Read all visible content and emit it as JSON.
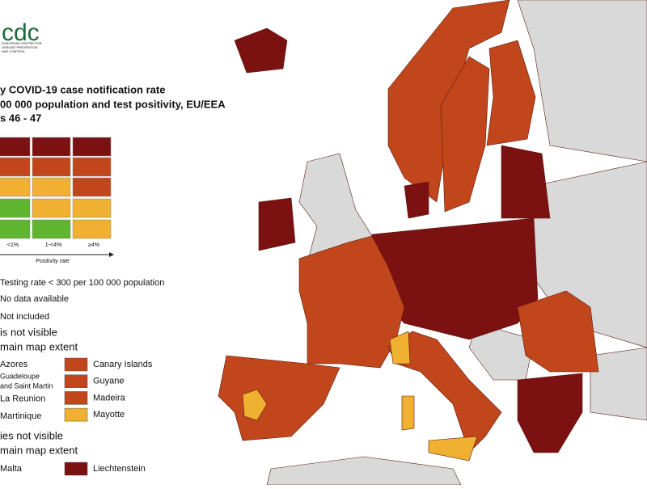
{
  "logo": {
    "text": "cdc",
    "subtitle": [
      "EUROPEAN CENTRE FOR",
      "DISEASE PREVENTION",
      "AND CONTROL"
    ]
  },
  "title": [
    "y COVID-19 case notification rate",
    "00 000 population and test positivity, EU/EEA",
    "s 46 - 47"
  ],
  "legend": {
    "matrix": [
      [
        "#7b1111",
        "#7b1111",
        "#7b1111"
      ],
      [
        "#c2461b",
        "#c2461b",
        "#c2461b"
      ],
      [
        "#f0b032",
        "#f0b032",
        "#c2461b"
      ],
      [
        "#5fb52f",
        "#f0b032",
        "#f0b032"
      ],
      [
        "#5fb52f",
        "#5fb52f",
        "#f0b032"
      ]
    ],
    "columns": [
      "<1%",
      "1-<4%",
      "≥4%"
    ],
    "axis_label": "Positivity rate",
    "items": [
      "Testing rate < 300 per 100 000 population",
      "No data available",
      "Not included"
    ]
  },
  "outside_regions": {
    "heading": [
      "is not visible",
      "main map extent"
    ],
    "left": [
      {
        "label": [
          "Azores"
        ],
        "color": "#c2461b"
      },
      {
        "label": [
          "Guadeloupe",
          "and Saint Martin"
        ],
        "color": "#c2461b"
      },
      {
        "label": [
          "La Reunion"
        ],
        "color": "#c2461b"
      },
      {
        "label": [
          "Martinique"
        ],
        "color": "#c2461b"
      }
    ],
    "right": [
      {
        "label": [
          "Canary Islands"
        ],
        "color": "#c2461b"
      },
      {
        "label": [
          "Guyane"
        ],
        "color": "#c2461b"
      },
      {
        "label": [
          "Madeira"
        ],
        "color": "#c2461b"
      },
      {
        "label": [
          "Mayotte"
        ],
        "color": "#f0b032"
      }
    ]
  },
  "small_countries": {
    "heading": [
      "ies not visible",
      "main map extent"
    ],
    "left": [
      {
        "label": [
          "Malta"
        ],
        "color": "#c2461b"
      }
    ],
    "right": [
      {
        "label": [
          "Liechtenstein"
        ],
        "color": "#7b1111"
      }
    ]
  }
}
